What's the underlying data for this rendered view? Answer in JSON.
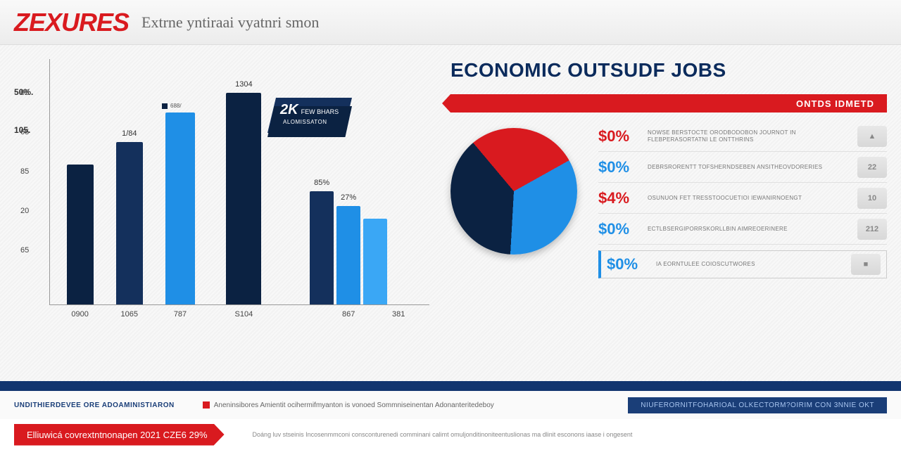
{
  "header": {
    "logo_text": "ZEXURES",
    "logo_color_left": "#d91a1f",
    "logo_color_right": "#1a3e78",
    "subtitle": "Extrne yntiraai vyatnri smon"
  },
  "bar_chart": {
    "type": "bar",
    "y_axis_title_top": "50%.",
    "y_axis_title_mid": "105.",
    "y_ticks": [
      "65",
      "65",
      "85",
      "20",
      "65"
    ],
    "y_tick_top": 0.12,
    "y_tick_spacing": 0.16,
    "groups": [
      {
        "x": 0.04,
        "width_each": 38,
        "bars": [
          {
            "h": 0.57,
            "fill": "#0b2242",
            "label": ""
          }
        ],
        "xlabel": "0900"
      },
      {
        "x": 0.17,
        "width_each": 38,
        "bars": [
          {
            "h": 0.66,
            "fill": "#14305c",
            "label": "1/84"
          }
        ],
        "xlabel": "1065"
      },
      {
        "x": 0.3,
        "width_each": 42,
        "bars": [
          {
            "h": 0.78,
            "fill": "#1f8fe6",
            "label": ""
          }
        ],
        "xlabel": "787"
      },
      {
        "x": 0.46,
        "width_each": 50,
        "bars": [
          {
            "h": 0.86,
            "fill": "#0b2242",
            "label": "1304",
            "toplabel": "668/"
          }
        ],
        "xlabel": "S104"
      },
      {
        "x": 0.68,
        "width_each": 34,
        "bars": [
          {
            "h": 0.46,
            "fill": "#14305c",
            "label": "85%"
          },
          {
            "h": 0.4,
            "fill": "#1f8fe6",
            "label": "27%"
          },
          {
            "h": 0.35,
            "fill": "#3aa7f5",
            "label": ""
          }
        ],
        "xlabel": "867"
      },
      {
        "x": 0.9,
        "width_each": 4,
        "bars": [],
        "xlabel": "381"
      }
    ],
    "colors": {
      "dark_navy": "#0b2242",
      "navy": "#14305c",
      "blue": "#1f8fe6",
      "light_blue": "#3aa7f5",
      "axis": "#999999"
    },
    "tiny_legend": "688/",
    "badge": {
      "line1": "2K",
      "line1b": "FEW BHARS",
      "line2": "ALOMISSATON"
    }
  },
  "right_panel": {
    "title": "ECONOMIC OUTSUDF JOBS",
    "ribbon": "ONTDS IDMETD",
    "pie": {
      "type": "pie",
      "slices": [
        {
          "value": 28,
          "color": "#d91a1f"
        },
        {
          "value": 34,
          "color": "#1f8fe6"
        },
        {
          "value": 38,
          "color": "#0b2242"
        }
      ],
      "rotate_deg": -40
    },
    "stats": [
      {
        "value": "$0%",
        "color": "#d91a1f",
        "desc": "NOWSE BERSTOCTE ORODBODOBON JOURNOT IN FLEBPERASORTATNI LE ONTTHRINS",
        "icon": "▲"
      },
      {
        "value": "$0%",
        "color": "#1f8fe6",
        "desc": "DEBRSRORENTT TOFSHERNDSEBEN ANSITHEOVDORERIES",
        "icon": "22"
      },
      {
        "value": "$4%",
        "color": "#d91a1f",
        "desc": "OSUNUON FET TRESSTOOCUETIOI IEWANIRNOENGT",
        "icon": "10"
      },
      {
        "value": "$0%",
        "color": "#1f8fe6",
        "desc": "ECTLBSERGIPORRSKORLLBIN AIMREOERINERE",
        "icon": "212"
      }
    ],
    "boxed_stat": {
      "value": "$0%",
      "color": "#1f8fe6",
      "desc": "IA EORNTULEE COIOSCUTWORES",
      "icon": "■"
    }
  },
  "footer": {
    "blue_strip_color": "#12356f",
    "left_text": "UNDITHIERDEVEE ORE ADOAMINISTIARON",
    "mid_text": "Aneninsibores Amientit ocihermifmyanton is vonoed Sommniseinentan Adonanteritedeboy",
    "right_pill": "NIUFERORNITFOHARIOAL OLKECTORM?OIRIM CON 3NNIE OKT",
    "red_ribbon": "Elliuwicá covrextntnonapen 2021 CZE6 29%",
    "note": "Doáng luv stseinis Incosenmmconi consconturenedi comminani calimt omuljonditinoniteentuslionas ma dlinit esconons iaase i ongesent"
  }
}
